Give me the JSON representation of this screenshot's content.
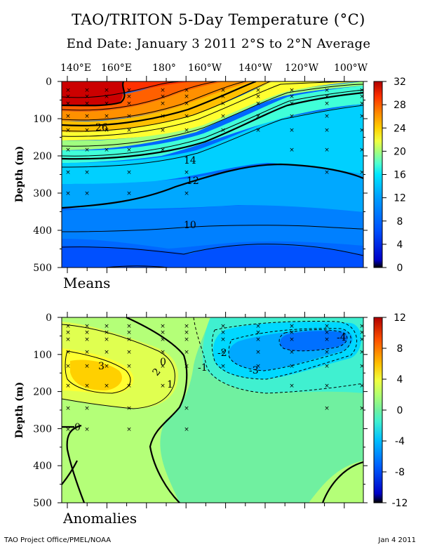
{
  "figure": {
    "title": "TAO/TRITON 5-Day Temperature (°C)",
    "subtitle": "End Date: January 3 2011   2°S to 2°N Average",
    "footer_left": "TAO Project Office/PMEL/NOAA",
    "footer_right": "Jan  4 2011",
    "longitude_ticks": [
      "140°E",
      "160°E",
      "180°",
      "160°W",
      "140°W",
      "120°W",
      "100°W"
    ]
  },
  "chart_data": [
    {
      "type": "heatmap",
      "panel_label": "Means",
      "ylabel": "Depth (m)",
      "yticks": [
        0,
        100,
        200,
        300,
        400,
        500
      ],
      "ylim": [
        500,
        0
      ],
      "x": [
        "140°E",
        "160°E",
        "180°",
        "160°W",
        "140°W",
        "120°W",
        "100°W"
      ],
      "colorbar": {
        "ticks": [
          32,
          28,
          24,
          20,
          16,
          12,
          8,
          4,
          0
        ],
        "range": [
          0,
          32
        ]
      },
      "contour_labels": [
        "26",
        "14",
        "12",
        "10"
      ],
      "values": [
        [
          29.5,
          29.6,
          29.0,
          28.5,
          27.0,
          25.5,
          24.0
        ],
        [
          29.0,
          28.8,
          28.0,
          26.5,
          22.0,
          16.0,
          15.0
        ],
        [
          27.5,
          27.0,
          25.5,
          21.0,
          15.0,
          13.5,
          13.0
        ],
        [
          25.0,
          23.0,
          18.0,
          14.0,
          12.5,
          12.5,
          13.0
        ],
        [
          14.5,
          14.0,
          13.5,
          13.0,
          12.5,
          12.5,
          12.5
        ],
        [
          12.0,
          12.0,
          12.0,
          12.0,
          11.5,
          11.5,
          11.5
        ],
        [
          11.5,
          11.0,
          10.5,
          10.5,
          10.5,
          10.0,
          10.0
        ],
        [
          10.0,
          10.0,
          9.5,
          9.5,
          9.5,
          9.5,
          9.5
        ],
        [
          9.5,
          9.5,
          9.0,
          9.0,
          8.0,
          8.5,
          9.0
        ],
        [
          8.5,
          8.5,
          8.0,
          8.0,
          7.5,
          7.5,
          8.0
        ],
        [
          8.0,
          7.5,
          7.5,
          7.5,
          7.0,
          7.0,
          7.5
        ]
      ]
    },
    {
      "type": "heatmap",
      "panel_label": "Anomalies",
      "ylabel": "Depth (m)",
      "yticks": [
        0,
        100,
        200,
        300,
        400,
        500
      ],
      "ylim": [
        500,
        0
      ],
      "x": [
        "140°E",
        "160°E",
        "180°",
        "160°W",
        "140°W",
        "120°W",
        "100°W"
      ],
      "colorbar": {
        "ticks": [
          12,
          8,
          4,
          0,
          -4,
          -8,
          -12
        ],
        "range": [
          -12,
          12
        ]
      },
      "contour_labels": [
        "3",
        "2",
        "1",
        "0",
        "-1",
        "-2",
        "-3",
        "-4",
        "0"
      ],
      "values": [
        [
          1.0,
          1.0,
          0.0,
          -1.0,
          -1.0,
          -1.5,
          -1.5
        ],
        [
          2.0,
          1.5,
          0.5,
          -1.0,
          -1.5,
          -3.0,
          -2.5
        ],
        [
          3.0,
          2.5,
          1.0,
          -1.0,
          -2.5,
          -4.0,
          -3.0
        ],
        [
          3.5,
          3.0,
          1.5,
          -1.0,
          -2.5,
          -3.0,
          -2.0
        ],
        [
          3.0,
          2.5,
          1.0,
          -0.5,
          -1.5,
          -1.5,
          -1.0
        ],
        [
          1.5,
          1.5,
          0.5,
          -0.5,
          -0.5,
          -0.5,
          -0.5
        ],
        [
          0.5,
          0.5,
          0.0,
          -0.5,
          -0.5,
          -0.5,
          -0.5
        ],
        [
          0.0,
          0.5,
          0.0,
          -0.5,
          -0.5,
          -0.5,
          -0.5
        ],
        [
          0.0,
          0.0,
          0.0,
          -0.5,
          -0.5,
          -0.5,
          -0.5
        ],
        [
          0.5,
          0.0,
          0.0,
          -0.5,
          -0.5,
          -0.5,
          0.0
        ],
        [
          0.5,
          0.5,
          0.0,
          -0.5,
          -0.5,
          -0.5,
          0.0
        ]
      ]
    }
  ]
}
